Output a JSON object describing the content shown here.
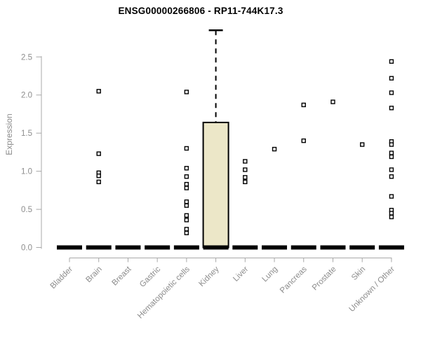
{
  "chart_data": {
    "type": "boxplot",
    "title": "ENSG00000266806 - RP11-744K17.3",
    "ylabel": "Expression",
    "ylim": [
      0,
      2.9
    ],
    "yticks": [
      0,
      0.5,
      1,
      1.5,
      2,
      2.5
    ],
    "grid": false,
    "legend": "none",
    "categories": [
      "Bladder",
      "Brain",
      "Breast",
      "Gastric",
      "Hematopoietic cells",
      "Kidney",
      "Liver",
      "Lung",
      "Pancreas",
      "Prostate",
      "Skin",
      "Unknown / Other"
    ],
    "series": [
      {
        "category": "Bladder",
        "box": {
          "q1": 0,
          "median": 0,
          "q3": 0,
          "whisker_low": 0,
          "whisker_high": 0
        },
        "points": []
      },
      {
        "category": "Brain",
        "box": {
          "q1": 0,
          "median": 0,
          "q3": 0,
          "whisker_low": 0,
          "whisker_high": 0
        },
        "points": [
          2.05,
          1.23,
          0.98,
          0.94,
          0.86
        ]
      },
      {
        "category": "Breast",
        "box": {
          "q1": 0,
          "median": 0,
          "q3": 0,
          "whisker_low": 0,
          "whisker_high": 0
        },
        "points": []
      },
      {
        "category": "Gastric",
        "box": {
          "q1": 0,
          "median": 0,
          "q3": 0,
          "whisker_low": 0,
          "whisker_high": 0
        },
        "points": []
      },
      {
        "category": "Hematopoietic cells",
        "box": {
          "q1": 0,
          "median": 0,
          "q3": 0,
          "whisker_low": 0,
          "whisker_high": 0
        },
        "points": [
          2.04,
          1.3,
          1.04,
          0.93,
          0.83,
          0.78,
          0.6,
          0.55,
          0.42,
          0.36,
          0.24,
          0.19
        ]
      },
      {
        "category": "Kidney",
        "box": {
          "q1": 0,
          "median": 0,
          "q3": 1.64,
          "whisker_low": 0,
          "whisker_high": 2.85
        },
        "points": []
      },
      {
        "category": "Liver",
        "box": {
          "q1": 0,
          "median": 0,
          "q3": 0,
          "whisker_low": 0,
          "whisker_high": 0
        },
        "points": [
          1.13,
          1.02,
          0.92,
          0.86
        ]
      },
      {
        "category": "Lung",
        "box": {
          "q1": 0,
          "median": 0,
          "q3": 0,
          "whisker_low": 0,
          "whisker_high": 0
        },
        "points": [
          1.29
        ]
      },
      {
        "category": "Pancreas",
        "box": {
          "q1": 0,
          "median": 0,
          "q3": 0,
          "whisker_low": 0,
          "whisker_high": 0
        },
        "points": [
          1.87,
          1.4
        ]
      },
      {
        "category": "Prostate",
        "box": {
          "q1": 0,
          "median": 0,
          "q3": 0,
          "whisker_low": 0,
          "whisker_high": 0
        },
        "points": [
          1.91
        ]
      },
      {
        "category": "Skin",
        "box": {
          "q1": 0,
          "median": 0,
          "q3": 0,
          "whisker_low": 0,
          "whisker_high": 0
        },
        "points": [
          1.35
        ]
      },
      {
        "category": "Unknown / Other",
        "box": {
          "q1": 0,
          "median": 0,
          "q3": 0,
          "whisker_low": 0,
          "whisker_high": 0
        },
        "points": [
          2.44,
          2.22,
          2.03,
          1.83,
          1.39,
          1.35,
          1.24,
          1.19,
          1.02,
          0.93,
          0.67,
          0.49,
          0.45,
          0.4
        ]
      }
    ],
    "colors": {
      "box_fill": "#ece7c8",
      "box_border": "#000000",
      "median": "#000000",
      "point_stroke": "#000000",
      "point_fill": "#ffffff",
      "axis": "#a8a8a8",
      "tick_text": "#8c8c8c",
      "title_text": "#000000"
    }
  }
}
